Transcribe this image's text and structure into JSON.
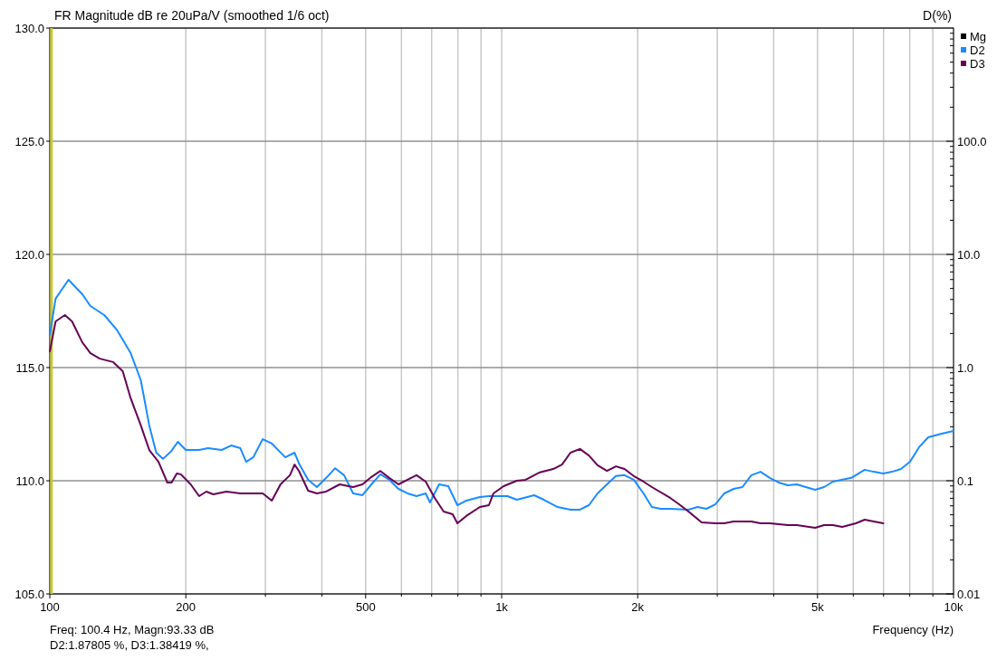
{
  "chart_data": {
    "type": "line",
    "title": "FR Magnitude dB re 20uPa/V (smoothed 1/6 oct)",
    "xlabel": "Frequency (Hz)",
    "ylabel": "D(%)",
    "annotations": [
      "Freq: 100.4 Hz, Magn:93.33 dB",
      "D2:1.87805 %, D3:1.38419 %,"
    ],
    "log": "xy",
    "grid": true,
    "legend": "top right",
    "line_style": "solid",
    "marker": "none",
    "xlim": [
      100,
      10000
    ],
    "xticks": [
      {
        "value": 100,
        "label": "100"
      },
      {
        "value": 200,
        "label": "200"
      },
      {
        "value": 300,
        "label": null
      },
      {
        "value": 400,
        "label": null
      },
      {
        "value": 500,
        "label": "500"
      },
      {
        "value": 600,
        "label": null
      },
      {
        "value": 700,
        "label": null
      },
      {
        "value": 800,
        "label": null
      },
      {
        "value": 900,
        "label": null
      },
      {
        "value": 1000,
        "label": "1k"
      },
      {
        "value": 2000,
        "label": "2k"
      },
      {
        "value": 3000,
        "label": null
      },
      {
        "value": 4000,
        "label": null
      },
      {
        "value": 5000,
        "label": "5k"
      },
      {
        "value": 6000,
        "label": null
      },
      {
        "value": 7000,
        "label": null
      },
      {
        "value": 8000,
        "label": null
      },
      {
        "value": 9000,
        "label": null
      },
      {
        "value": 10000,
        "label": "10k"
      }
    ],
    "y2lim": [
      105,
      130
    ],
    "y2ticks": [
      {
        "value": 105,
        "label": "105.0"
      },
      {
        "value": 110,
        "label": "110.0"
      },
      {
        "value": 115,
        "label": "115.0"
      },
      {
        "value": 120,
        "label": "120.0"
      },
      {
        "value": 125,
        "label": "125.0"
      },
      {
        "value": 130,
        "label": "130.0"
      }
    ],
    "ylim": [
      0.01,
      1000
    ],
    "yticks": [
      {
        "value": 0.01,
        "label": "0.01"
      },
      {
        "value": 0.02,
        "label": null
      },
      {
        "value": 0.03,
        "label": null
      },
      {
        "value": 0.04,
        "label": null
      },
      {
        "value": 0.05,
        "label": null
      },
      {
        "value": 0.06,
        "label": null
      },
      {
        "value": 0.07,
        "label": null
      },
      {
        "value": 0.08,
        "label": null
      },
      {
        "value": 0.09,
        "label": null
      },
      {
        "value": 0.1,
        "label": "0.1"
      },
      {
        "value": 0.2,
        "label": null
      },
      {
        "value": 0.3,
        "label": null
      },
      {
        "value": 0.4,
        "label": null
      },
      {
        "value": 0.5,
        "label": null
      },
      {
        "value": 0.6,
        "label": null
      },
      {
        "value": 0.7,
        "label": null
      },
      {
        "value": 0.8,
        "label": null
      },
      {
        "value": 0.9,
        "label": null
      },
      {
        "value": 1,
        "label": "1.0"
      },
      {
        "value": 2,
        "label": null
      },
      {
        "value": 3,
        "label": null
      },
      {
        "value": 4,
        "label": null
      },
      {
        "value": 5,
        "label": null
      },
      {
        "value": 6,
        "label": null
      },
      {
        "value": 7,
        "label": null
      },
      {
        "value": 8,
        "label": null
      },
      {
        "value": 9,
        "label": null
      },
      {
        "value": 10,
        "label": "10.0"
      },
      {
        "value": 20,
        "label": null
      },
      {
        "value": 30,
        "label": null
      },
      {
        "value": 40,
        "label": null
      },
      {
        "value": 50,
        "label": null
      },
      {
        "value": 60,
        "label": null
      },
      {
        "value": 70,
        "label": null
      },
      {
        "value": 80,
        "label": null
      },
      {
        "value": 90,
        "label": null
      },
      {
        "value": 100,
        "label": "100.0"
      },
      {
        "value": 200,
        "label": null
      },
      {
        "value": 300,
        "label": null
      },
      {
        "value": 400,
        "label": null
      },
      {
        "value": 500,
        "label": null
      },
      {
        "value": 600,
        "label": null
      },
      {
        "value": 700,
        "label": null
      },
      {
        "value": 800,
        "label": null
      },
      {
        "value": 900,
        "label": null
      }
    ],
    "ref_lines": [
      {
        "axis": "x",
        "value": 100.4,
        "color": "#c8c832"
      }
    ],
    "series": [
      {
        "name": "Mg",
        "color": "#000000"
      },
      {
        "name": "D2",
        "color": "#1a8cff",
        "x": [
          100,
          103,
          110,
          118,
          123,
          132,
          141,
          151,
          159,
          166,
          172,
          178,
          186,
          192,
          200,
          214,
          224,
          240,
          252,
          264,
          272,
          282,
          296,
          310,
          332,
          348,
          356,
          373,
          390,
          409,
          428,
          448,
          469,
          492,
          515,
          539,
          564,
          591,
          619,
          648,
          679,
          694,
          727,
          762,
          798,
          835,
          895,
          937,
          1030,
          1080,
          1180,
          1240,
          1330,
          1420,
          1490,
          1560,
          1630,
          1710,
          1790,
          1870,
          1960,
          2060,
          2150,
          2250,
          2360,
          2590,
          2710,
          2840,
          2970,
          3110,
          3260,
          3410,
          3570,
          3740,
          3920,
          4100,
          4300,
          4500,
          4710,
          4940,
          5170,
          5410,
          5940,
          6360,
          6660,
          6990,
          7310,
          7650,
          8010,
          8390,
          8790,
          9420,
          10000
        ],
        "values": [
          1.94,
          4.06,
          5.97,
          4.45,
          3.5,
          2.91,
          2.13,
          1.34,
          0.773,
          0.308,
          0.177,
          0.156,
          0.184,
          0.221,
          0.187,
          0.187,
          0.194,
          0.187,
          0.205,
          0.194,
          0.147,
          0.161,
          0.233,
          0.213,
          0.161,
          0.177,
          0.142,
          0.102,
          0.0879,
          0.106,
          0.129,
          0.112,
          0.0773,
          0.0745,
          0.0929,
          0.114,
          0.102,
          0.0847,
          0.0773,
          0.0731,
          0.0773,
          0.0643,
          0.0929,
          0.0895,
          0.0608,
          0.0667,
          0.0718,
          0.0731,
          0.0731,
          0.0679,
          0.0745,
          0.0679,
          0.0586,
          0.0555,
          0.0555,
          0.0608,
          0.0773,
          0.0929,
          0.11,
          0.112,
          0.102,
          0.0773,
          0.0586,
          0.0565,
          0.0565,
          0.0555,
          0.0586,
          0.0565,
          0.0619,
          0.0773,
          0.0847,
          0.0879,
          0.112,
          0.12,
          0.106,
          0.0964,
          0.0912,
          0.0929,
          0.0879,
          0.0832,
          0.0879,
          0.0982,
          0.106,
          0.125,
          0.12,
          0.116,
          0.12,
          0.127,
          0.147,
          0.198,
          0.242,
          0.261,
          0.275
        ]
      },
      {
        "name": "D3",
        "color": "#660055",
        "x": [
          100,
          103,
          108,
          112,
          118,
          123,
          129,
          138,
          145,
          151,
          159,
          166,
          174,
          182,
          186,
          191,
          195,
          205,
          214,
          222,
          230,
          246,
          264,
          282,
          296,
          310,
          324,
          340,
          348,
          356,
          373,
          390,
          409,
          438,
          469,
          492,
          515,
          539,
          564,
          591,
          619,
          648,
          679,
          711,
          744,
          779,
          798,
          835,
          895,
          937,
          959,
          1010,
          1080,
          1130,
          1210,
          1300,
          1360,
          1420,
          1490,
          1560,
          1630,
          1710,
          1790,
          1870,
          1960,
          2060,
          2150,
          2360,
          2470,
          2590,
          2770,
          2970,
          3110,
          3260,
          3570,
          3740,
          3920,
          4300,
          4500,
          4940,
          5170,
          5410,
          5670,
          6080,
          6360,
          6660,
          6990
        ],
        "values": [
          1.39,
          2.56,
          2.91,
          2.56,
          1.67,
          1.34,
          1.2,
          1.12,
          0.929,
          0.535,
          0.308,
          0.187,
          0.147,
          0.0964,
          0.0964,
          0.116,
          0.114,
          0.0929,
          0.0731,
          0.0802,
          0.0759,
          0.0802,
          0.0773,
          0.0773,
          0.0773,
          0.0667,
          0.0929,
          0.112,
          0.139,
          0.122,
          0.0817,
          0.0773,
          0.0802,
          0.0929,
          0.0879,
          0.0929,
          0.108,
          0.122,
          0.106,
          0.0929,
          0.102,
          0.112,
          0.0982,
          0.0705,
          0.0535,
          0.0506,
          0.0421,
          0.0488,
          0.0586,
          0.0608,
          0.0773,
          0.0895,
          0.1,
          0.102,
          0.118,
          0.127,
          0.139,
          0.177,
          0.191,
          0.167,
          0.137,
          0.122,
          0.134,
          0.127,
          0.11,
          0.0982,
          0.0879,
          0.0705,
          0.0619,
          0.0535,
          0.0429,
          0.0421,
          0.0421,
          0.0437,
          0.0437,
          0.0421,
          0.0421,
          0.0406,
          0.0406,
          0.0384,
          0.0406,
          0.0406,
          0.0391,
          0.0421,
          0.0453,
          0.0437,
          0.0421
        ]
      }
    ]
  }
}
